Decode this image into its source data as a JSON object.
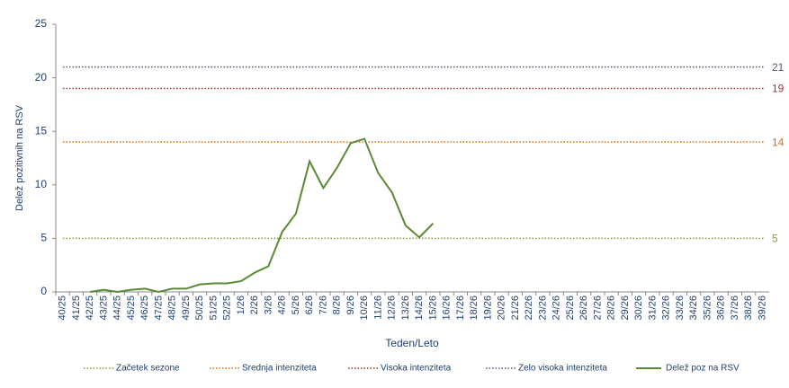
{
  "chart_data": {
    "type": "line",
    "y_label": "Delež pozitivnih na RSV",
    "x_label": "Teden/Leto",
    "categories": [
      "40/25",
      "41/25",
      "42/25",
      "43/25",
      "44/25",
      "45/25",
      "46/25",
      "47/25",
      "48/25",
      "49/25",
      "50/25",
      "51/25",
      "52/25",
      "1/26",
      "2/26",
      "3/26",
      "4/26",
      "5/26",
      "6/26",
      "7/26",
      "8/26",
      "9/26",
      "10/26",
      "11/26",
      "12/26",
      "13/26",
      "14/26",
      "15/26",
      "16/26",
      "17/26",
      "18/26",
      "19/26",
      "20/26",
      "21/26",
      "22/26",
      "23/26",
      "24/26",
      "25/26",
      "26/26",
      "27/26",
      "28/26",
      "29/26",
      "30/26",
      "31/26",
      "32/26",
      "33/26",
      "34/26",
      "35/26",
      "36/26",
      "37/26",
      "38/26",
      "39/26"
    ],
    "thresholds": [
      {
        "name": "Začetek sezone",
        "color": "#8c9d3a",
        "value": 5
      },
      {
        "name": "Srednja intenziteta",
        "color": "#e46c0a",
        "value": 14
      },
      {
        "name": "Visoka intenziteta",
        "color": "#953735",
        "value": 19
      },
      {
        "name": "Zelo visoka intenziteta",
        "color": "#4f5b6e",
        "value": 21
      }
    ],
    "series": [
      {
        "name": "Delež poz na RSV",
        "color": "#5a8a35",
        "values": [
          null,
          null,
          0,
          0.2,
          0,
          0.2,
          0.3,
          0,
          0.3,
          0.3,
          0.7,
          0.8,
          0.8,
          1.0,
          1.8,
          2.4,
          5.6,
          7.3,
          12.2,
          9.7,
          11.6,
          13.9,
          14.3,
          11.1,
          9.3,
          6.2,
          5.1,
          6.4,
          null,
          null,
          null,
          null,
          null,
          null,
          null,
          null,
          null,
          null,
          null,
          null,
          null,
          null,
          null,
          null,
          null,
          null,
          null,
          null,
          null,
          null,
          null,
          null
        ]
      }
    ],
    "ylim": [
      0,
      25
    ],
    "yticks": [
      0,
      5,
      10,
      15,
      20,
      25
    ]
  }
}
